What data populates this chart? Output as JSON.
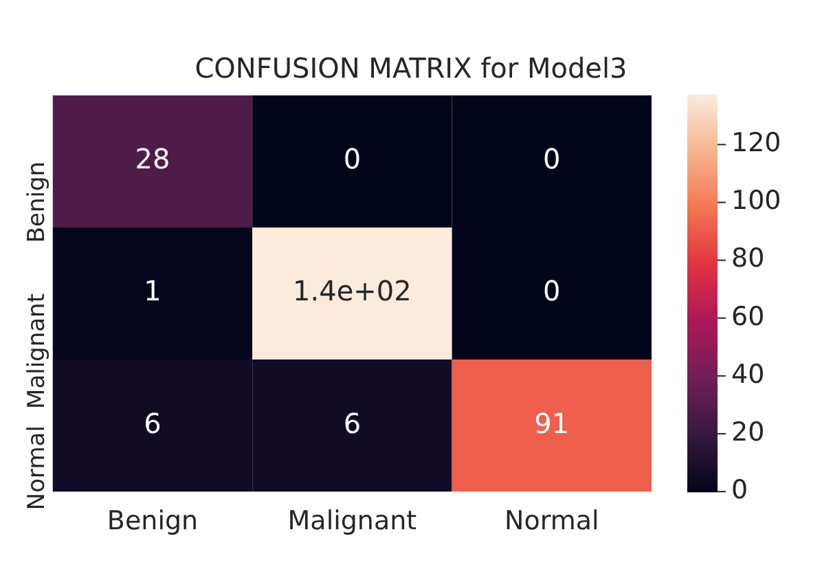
{
  "chart_data": {
    "type": "heatmap",
    "title": "CONFUSION MATRIX for Model3",
    "categories": [
      "Benign",
      "Malignant",
      "Normal"
    ],
    "y_categories": [
      "Benign",
      "Malignant",
      "Normal"
    ],
    "cells": [
      [
        28,
        0,
        0
      ],
      [
        1,
        137,
        0
      ],
      [
        6,
        6,
        91
      ]
    ],
    "cell_labels": [
      [
        "28",
        "0",
        "0"
      ],
      [
        "1",
        "1.4e+02",
        "0"
      ],
      [
        "6",
        "6",
        "91"
      ]
    ],
    "clim": [
      0,
      137
    ],
    "cticks": [
      0,
      20,
      40,
      60,
      80,
      100,
      120
    ]
  }
}
